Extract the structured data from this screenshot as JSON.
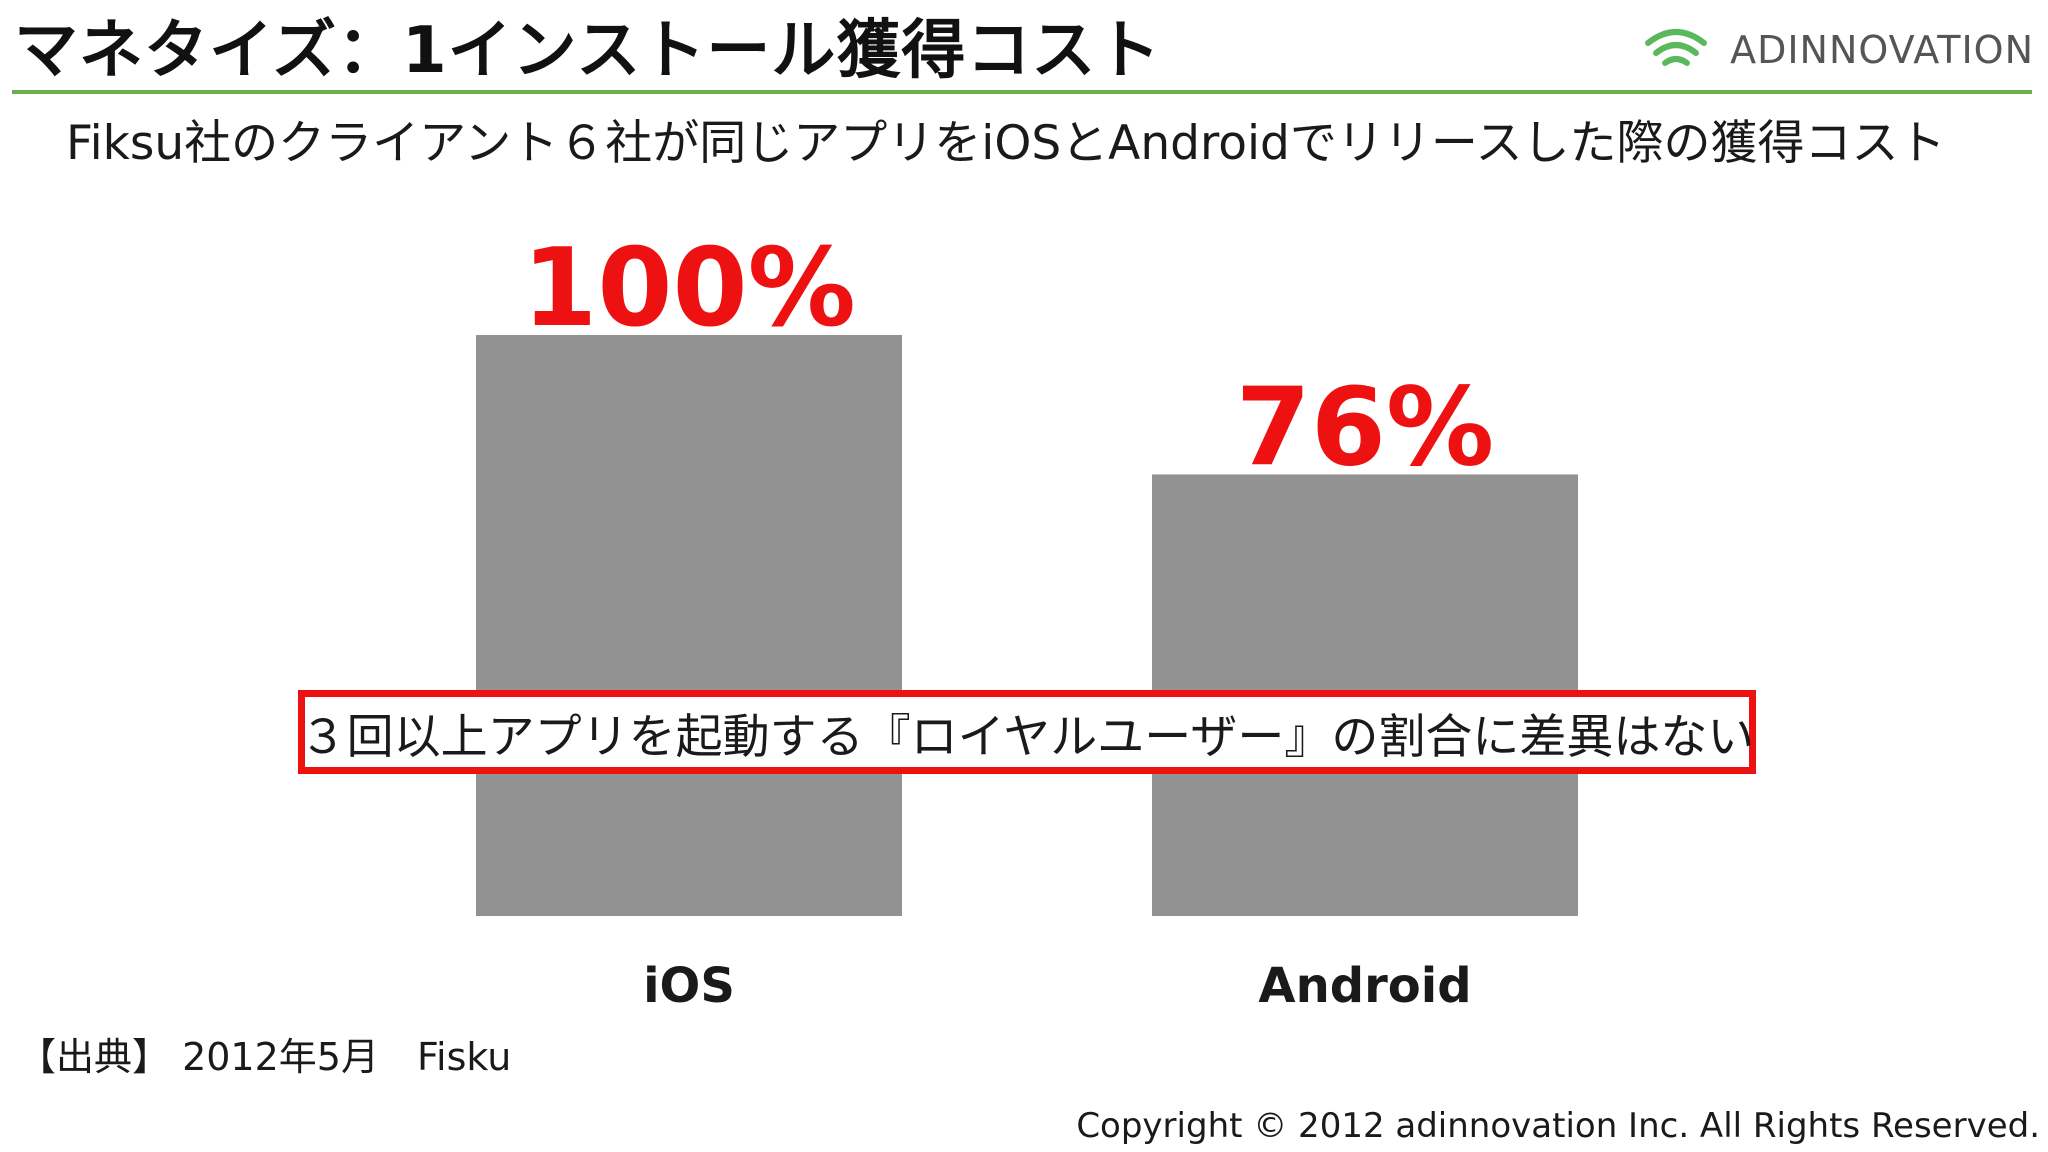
{
  "header": {
    "title": "マネタイズ：1インストール獲得コスト",
    "logo_text": "ADINNOVATION"
  },
  "subtitle": "Fiksu社のクライアント６社が同じアプリをiOSとAndroidでリリースした際の獲得コスト",
  "callout": "３回以上アプリを起動する『ロイヤルユーザー』の割合に差異はない",
  "footer": {
    "source": "【出典】 2012年5月　Fisku",
    "copyright": "Copyright © 2012  adinnovation Inc. All Rights Reserved."
  },
  "colors": {
    "bar": "#939293",
    "value_label": "#ee1111",
    "accent_rule": "#6ab04c",
    "logo_icon": "#5cb85c"
  },
  "chart_data": {
    "type": "bar",
    "categories": [
      "iOS",
      "Android"
    ],
    "values": [
      100,
      76
    ],
    "value_labels": [
      "100%",
      "76%"
    ],
    "unit": "%",
    "ylim": [
      0,
      100
    ],
    "grid": false,
    "legend": "none"
  }
}
